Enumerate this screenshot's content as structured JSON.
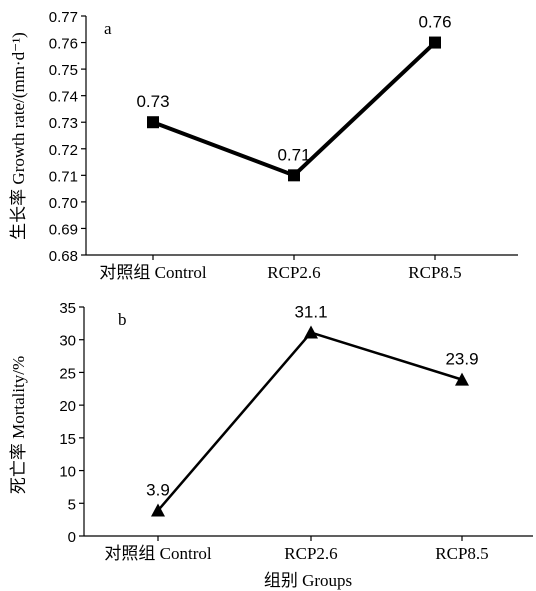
{
  "chart_data": [
    {
      "type": "line",
      "panel_label": "a",
      "categories": [
        "对照组 Control",
        "RCP2.6",
        "RCP8.5"
      ],
      "values": [
        0.73,
        0.71,
        0.76
      ],
      "data_labels": [
        "0.73",
        "0.71",
        "0.76"
      ],
      "ylabel": "生长率 Growth rate/(mm·d⁻¹)",
      "xlabel": "",
      "ylim": [
        0.68,
        0.77
      ],
      "yticks": [
        "0.77",
        "0.76",
        "0.75",
        "0.74",
        "0.73",
        "0.72",
        "0.71",
        "0.70",
        "0.69",
        "0.68"
      ],
      "marker": "square",
      "grid": false
    },
    {
      "type": "line",
      "panel_label": "b",
      "categories": [
        "对照组 Control",
        "RCP2.6",
        "RCP8.5"
      ],
      "values": [
        3.9,
        31.1,
        23.9
      ],
      "data_labels": [
        "3.9",
        "31.1",
        "23.9"
      ],
      "ylabel": "死亡率 Mortality/%",
      "xlabel": "组别 Groups",
      "ylim": [
        0,
        35
      ],
      "yticks": [
        "35",
        "30",
        "25",
        "20",
        "15",
        "10",
        "5",
        "0"
      ],
      "marker": "triangle",
      "grid": false
    }
  ]
}
